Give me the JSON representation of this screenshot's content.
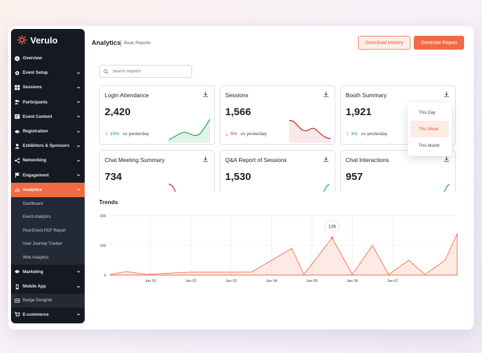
{
  "brand": {
    "name": "Verulo",
    "accent": "#f26a45"
  },
  "sidebar": {
    "items": [
      {
        "label": "Overview",
        "icon": "info-icon",
        "chevron": false
      },
      {
        "label": "Event Setup",
        "icon": "gear-icon",
        "chevron": true
      },
      {
        "label": "Sessions",
        "icon": "grid-icon",
        "chevron": true
      },
      {
        "label": "Participants",
        "icon": "users-icon",
        "chevron": true
      },
      {
        "label": "Event Content",
        "icon": "content-icon",
        "chevron": true
      },
      {
        "label": "Registration",
        "icon": "megaphone-icon",
        "chevron": true
      },
      {
        "label": "Exhibitors & Sponsors",
        "icon": "user-icon",
        "chevron": true
      },
      {
        "label": "Networking",
        "icon": "share-icon",
        "chevron": true
      },
      {
        "label": "Engagement",
        "icon": "flag-icon",
        "chevron": true
      },
      {
        "label": "Analytics",
        "icon": "chart-icon",
        "chevron": true,
        "active": true
      }
    ],
    "analytics_sub": [
      "Dashboard",
      "Event Analytics",
      "Post-Event PDF Report",
      "User Journey Tracker",
      "Web Analytics"
    ],
    "items_after": [
      {
        "label": "Marketing",
        "icon": "megaphone-icon",
        "chevron": true
      },
      {
        "label": "Mobile App",
        "icon": "mobile-icon",
        "chevron": true
      }
    ],
    "badge_designer": "Badge Designer",
    "ecommerce": {
      "label": "E-commerce",
      "icon": "cart-icon"
    }
  },
  "header": {
    "title": "Analytics",
    "subtitle": "Basic Reports",
    "download_history": "Download History",
    "generate_report": "Generate Report"
  },
  "search": {
    "placeholder": "Search Reports"
  },
  "cards": [
    {
      "title": "Login Attendance",
      "value": "2,420",
      "trend": "up",
      "pct": "10%",
      "vs": "vs yesterday"
    },
    {
      "title": "Sessions",
      "value": "1,566",
      "trend": "down",
      "pct": "5%",
      "vs": "vs yesterday"
    },
    {
      "title": "Booth Summary",
      "value": "1,921",
      "trend": "up",
      "pct": "3%",
      "vs": "vs yesterday"
    },
    {
      "title": "Chat Meeting Summary",
      "value": "734"
    },
    {
      "title": "Q&A Report of Sessions",
      "value": "1,530"
    },
    {
      "title": "Chat Interactions",
      "value": "957"
    }
  ],
  "dropdown": {
    "options": [
      "This Day",
      "This Week",
      "This Month"
    ],
    "selected": "This Week"
  },
  "colors": {
    "up": "#16a34a",
    "down": "#dc2626",
    "area": "#f26a45"
  },
  "trends": {
    "title": "Trends",
    "tooltip": "126",
    "chart_data": {
      "type": "area",
      "x": [
        "Jan 01",
        "Jan 02",
        "Jan 03",
        "Jan 04",
        "Jan 05",
        "Jan 06",
        "Jan 07"
      ],
      "y_ticks": [
        "200",
        "100",
        "0"
      ],
      "ylim": [
        0,
        200
      ],
      "series": [
        {
          "points": [
            [
              0.0,
              2
            ],
            [
              0.4,
              12
            ],
            [
              0.9,
              2
            ],
            [
              1.4,
              6
            ],
            [
              2.0,
              10
            ],
            [
              2.5,
              10
            ],
            [
              3.0,
              10
            ],
            [
              3.5,
              10
            ],
            [
              4.0,
              50
            ],
            [
              4.5,
              90
            ],
            [
              4.8,
              2
            ],
            [
              5.5,
              126
            ],
            [
              6.0,
              2
            ],
            [
              6.5,
              100
            ],
            [
              6.9,
              2
            ],
            [
              7.4,
              50
            ],
            [
              7.8,
              2
            ],
            [
              8.3,
              50
            ],
            [
              8.6,
              140
            ]
          ]
        }
      ]
    }
  }
}
